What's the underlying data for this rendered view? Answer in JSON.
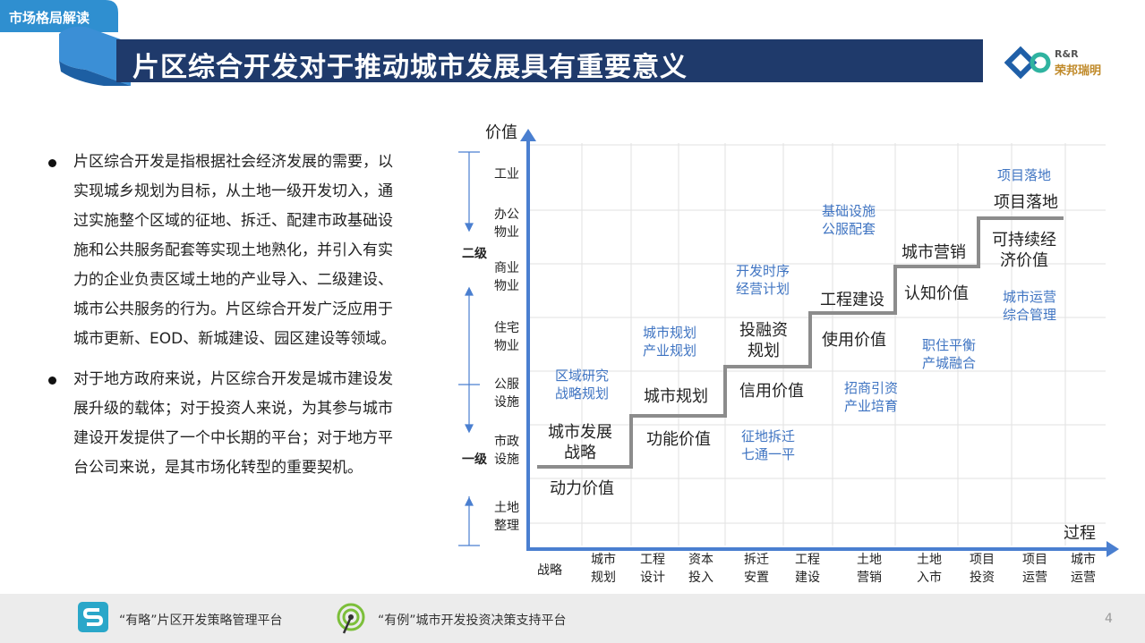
{
  "header": {
    "tag": "市场格局解读",
    "title": "片区综合开发对于推动城市发展具有重要意义",
    "logo_rr": "R&R",
    "logo_cn": "荣邦瑞明"
  },
  "bullets": [
    "片区综合开发是指根据社会经济发展的需要，以实现城乡规划为目标，从土地一级开发切入，通过实施整个区域的征地、拆迁、配建市政基础设施和公共服务配套等实现土地熟化，并引入有实力的企业负责区域土地的产业导入、二级建设、城市公共服务的行为。片区综合开发广泛应用于城市更新、EOD、新城建设、园区建设等领域。",
    "对于地方政府来说，片区综合开发是城市建设发展升级的载体；对于投资人来说，为其参与城市建设开发提供了一个中长期的平台；对于地方平台公司来说，是其市场化转型的重要契机。"
  ],
  "diagram": {
    "y_axis_title": "价值",
    "x_axis_title": "过程",
    "level_upper": "二级",
    "level_lower": "一级",
    "y_labels": [
      "工业",
      "办公\n物业",
      "商业\n物业",
      "住宅\n物业",
      "公服\n设施",
      "市政\n设施",
      "土地\n整理"
    ],
    "x_labels": [
      "战略",
      "城市\n规划",
      "工程\n设计",
      "资本\n投入",
      "拆迁\n安置",
      "工程\n建设",
      "土地\n营销",
      "土地\n入市",
      "项目\n投资",
      "项目\n运营",
      "城市\n运营"
    ],
    "steps": [
      {
        "above": "城市发展\n战略",
        "below": "动力价值",
        "note": "区域研究\n战略规划"
      },
      {
        "above": "城市规划",
        "below": "功能价值",
        "note": "城市规划\n产业规划"
      },
      {
        "above": "投融资\n规划",
        "below": "信用价值",
        "note": "开发时序\n经营计划"
      },
      {
        "above": "工程建设",
        "below": "使用价值",
        "note": "基础设施\n公服配套"
      },
      {
        "above": "城市营销",
        "below": "认知价值",
        "note": ""
      },
      {
        "above": "项目落地",
        "below": "可持续经\n济价值",
        "note": "项目落地"
      }
    ],
    "extra_notes": [
      "征地拆迁\n七通一平",
      "招商引资\n产业培育",
      "职住平衡\n产城融合",
      "城市运营\n综合管理"
    ]
  },
  "footer": {
    "platform1": "“有略”片区开发策略管理平台",
    "platform2": "“有例”城市开发投资决策支持平台",
    "page": "4"
  },
  "colors": {
    "navy": "#1f3a6b",
    "accent_blue": "#3f74c2",
    "axis_blue": "#4a7fd0",
    "step_gray": "#8c8c8c"
  }
}
